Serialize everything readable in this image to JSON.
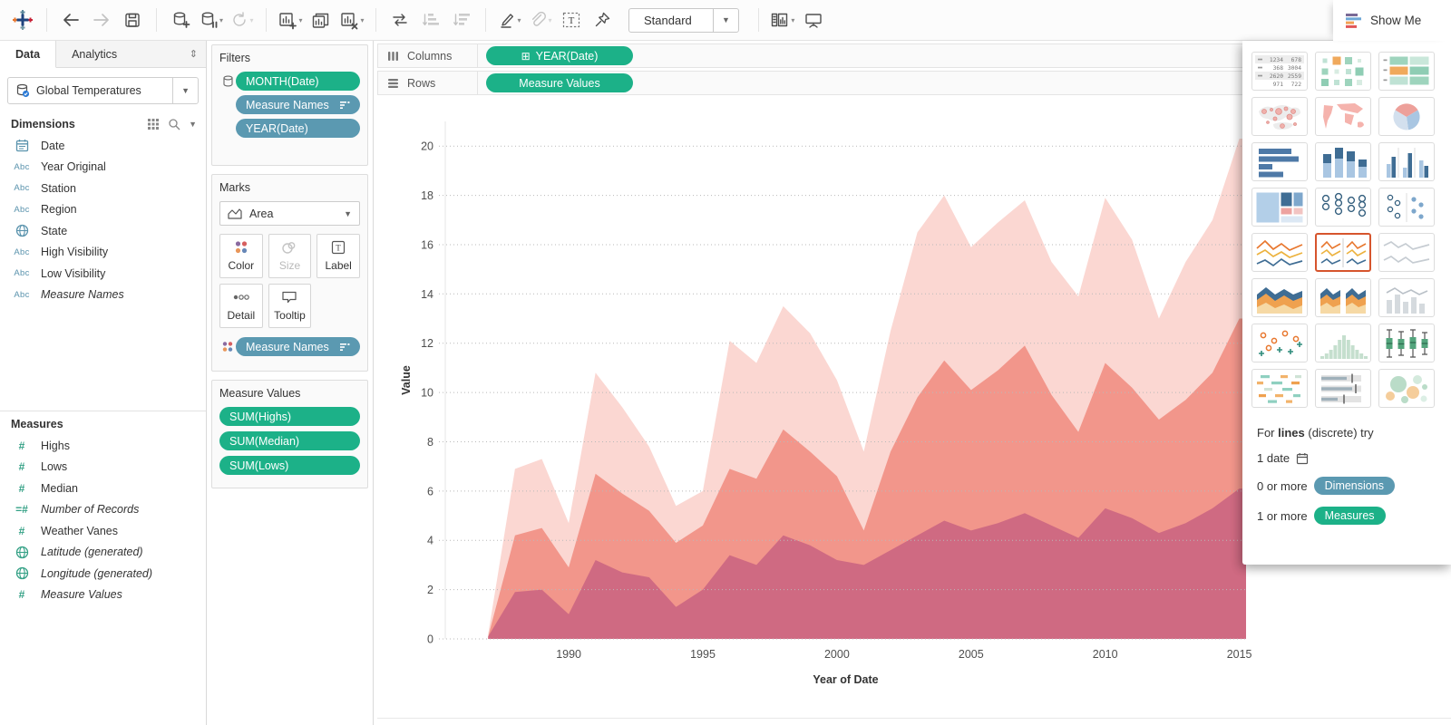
{
  "toolbar": {
    "view_mode": "Standard",
    "show_me_label": "Show Me"
  },
  "sidebar": {
    "tabs": {
      "data": "Data",
      "analytics": "Analytics"
    },
    "datasource": {
      "name": "Global Temperatures"
    },
    "dimensions": {
      "header": "Dimensions",
      "fields": [
        {
          "icon": "calendar-icon",
          "label": "Date"
        },
        {
          "icon": "abc-icon",
          "label": "Year Original"
        },
        {
          "icon": "abc-icon",
          "label": "Station"
        },
        {
          "icon": "abc-icon",
          "label": "Region"
        },
        {
          "icon": "globe-icon",
          "label": "State"
        },
        {
          "icon": "abc-icon",
          "label": "High Visibility"
        },
        {
          "icon": "abc-icon",
          "label": "Low Visibility"
        },
        {
          "icon": "abc-icon",
          "label": "Measure Names"
        }
      ]
    },
    "measures": {
      "header": "Measures",
      "fields": [
        {
          "icon": "number-icon",
          "label": "Highs"
        },
        {
          "icon": "number-icon",
          "label": "Lows"
        },
        {
          "icon": "number-icon",
          "label": "Median"
        },
        {
          "icon": "number-icon",
          "label": "Number of Records"
        },
        {
          "icon": "number-icon",
          "label": "Weather Vanes"
        },
        {
          "icon": "globe-icon",
          "label": "Latitude (generated)"
        },
        {
          "icon": "globe-icon",
          "label": "Longitude (generated)"
        },
        {
          "icon": "number-icon",
          "label": "Measure Values"
        }
      ]
    }
  },
  "filters": {
    "title": "Filters",
    "pills": [
      {
        "label": "MONTH(Date)",
        "color": "green"
      },
      {
        "label": "Measure Names",
        "color": "blue",
        "filter_icon": true
      },
      {
        "label": "YEAR(Date)",
        "color": "blue"
      }
    ]
  },
  "marks": {
    "title": "Marks",
    "type_label": "Area",
    "buttons": [
      {
        "label": "Color",
        "enabled": true
      },
      {
        "label": "Size",
        "enabled": false
      },
      {
        "label": "Label",
        "enabled": true
      },
      {
        "label": "Detail",
        "enabled": true
      },
      {
        "label": "Tooltip",
        "enabled": true
      }
    ],
    "pill": {
      "label": "Measure Names",
      "color": "blue",
      "filter_icon": true
    }
  },
  "measure_values": {
    "title": "Measure Values",
    "pills": [
      {
        "label": "SUM(Highs)",
        "color": "green"
      },
      {
        "label": "SUM(Median)",
        "color": "green"
      },
      {
        "label": "SUM(Lows)",
        "color": "green"
      }
    ]
  },
  "shelves": {
    "columns": {
      "label": "Columns",
      "pill": "YEAR(Date)"
    },
    "rows": {
      "label": "Rows",
      "pill": "Measure Values"
    }
  },
  "chart_data": {
    "type": "area",
    "xlabel": "Year of Date",
    "ylabel": "Value",
    "xlim": [
      1985.4,
      2015.25
    ],
    "ylim": [
      0,
      21
    ],
    "xticks": [
      1990,
      1995,
      2000,
      2005,
      2010,
      2015
    ],
    "yticks": [
      0,
      2,
      4,
      6,
      8,
      10,
      12,
      14,
      16,
      18,
      20
    ],
    "grid": "dotted-horizontal",
    "legend": "none",
    "years": [
      1987,
      1988,
      1989,
      1990,
      1991,
      1992,
      1993,
      1994,
      1995,
      1996,
      1997,
      1998,
      1999,
      2000,
      2001,
      2002,
      2003,
      2004,
      2005,
      2006,
      2007,
      2008,
      2009,
      2010,
      2011,
      2012,
      2013,
      2014,
      2015
    ],
    "series": [
      {
        "name": "SUM(Highs)",
        "color": "#fbd7d2",
        "values": [
          0.2,
          6.9,
          7.3,
          4.7,
          10.8,
          9.4,
          7.8,
          5.4,
          6.0,
          12.1,
          11.2,
          13.5,
          12.4,
          10.5,
          7.6,
          12.5,
          16.5,
          18.0,
          15.9,
          16.9,
          17.8,
          15.3,
          13.9,
          17.9,
          16.2,
          13.0,
          15.3,
          17.0,
          20.3
        ]
      },
      {
        "name": "SUM(Median)",
        "color": "#f2968b",
        "values": [
          0.1,
          4.2,
          4.5,
          2.9,
          6.7,
          5.9,
          5.2,
          3.9,
          4.6,
          6.9,
          6.5,
          8.5,
          7.6,
          6.6,
          4.4,
          7.6,
          9.8,
          11.3,
          10.1,
          10.9,
          11.9,
          9.9,
          8.4,
          11.2,
          10.2,
          8.9,
          9.7,
          10.8,
          13.0
        ]
      },
      {
        "name": "SUM(Lows)",
        "color": "#cf6a82",
        "values": [
          0.1,
          1.9,
          2.0,
          1.0,
          3.2,
          2.7,
          2.5,
          1.3,
          2.0,
          3.4,
          3.0,
          4.2,
          3.8,
          3.2,
          3.0,
          3.6,
          4.2,
          4.8,
          4.4,
          4.7,
          5.1,
          4.6,
          4.1,
          5.3,
          4.9,
          4.3,
          4.7,
          5.3,
          6.1
        ]
      }
    ]
  },
  "show_me": {
    "button_label": "Show Me",
    "items": [
      {
        "name": "text-table",
        "state": "normal"
      },
      {
        "name": "heat-map",
        "state": "normal"
      },
      {
        "name": "highlight-table",
        "state": "normal"
      },
      {
        "name": "symbol-map",
        "state": "normal"
      },
      {
        "name": "filled-map",
        "state": "normal"
      },
      {
        "name": "pie-chart",
        "state": "normal"
      },
      {
        "name": "horizontal-bar",
        "state": "normal"
      },
      {
        "name": "stacked-bar",
        "state": "normal"
      },
      {
        "name": "side-by-side-bar",
        "state": "normal"
      },
      {
        "name": "treemap",
        "state": "normal"
      },
      {
        "name": "circle-view",
        "state": "normal"
      },
      {
        "name": "side-by-side-circle",
        "state": "normal"
      },
      {
        "name": "line-continuous",
        "state": "normal"
      },
      {
        "name": "line-discrete",
        "state": "selected"
      },
      {
        "name": "dual-line",
        "state": "disabled"
      },
      {
        "name": "area-continuous",
        "state": "normal"
      },
      {
        "name": "area-discrete",
        "state": "normal"
      },
      {
        "name": "dual-combination",
        "state": "disabled"
      },
      {
        "name": "scatter-plot",
        "state": "normal"
      },
      {
        "name": "histogram",
        "state": "normal"
      },
      {
        "name": "box-and-whisker",
        "state": "normal"
      },
      {
        "name": "gantt",
        "state": "normal"
      },
      {
        "name": "bullet-graph",
        "state": "normal"
      },
      {
        "name": "packed-bubbles",
        "state": "normal"
      }
    ],
    "table_numbers": [
      [
        "1234",
        "678"
      ],
      [
        "368",
        "3004"
      ],
      [
        "2620",
        "2559"
      ],
      [
        "971",
        "722"
      ]
    ],
    "footer": {
      "prefix": "For",
      "emphasis": "lines",
      "suffix": "(discrete) try",
      "req1": "1 date",
      "req2": "0 or more",
      "req2_pill": "Dimensions",
      "req3": "1 or more",
      "req3_pill": "Measures"
    }
  },
  "colors": {
    "green_pill": "#1cb188",
    "blue_pill": "#5b99b1",
    "selected_border": "#d6552d",
    "highs_area": "#fbd7d2",
    "median_area": "#f2968b",
    "lows_area": "#cf6a82"
  }
}
